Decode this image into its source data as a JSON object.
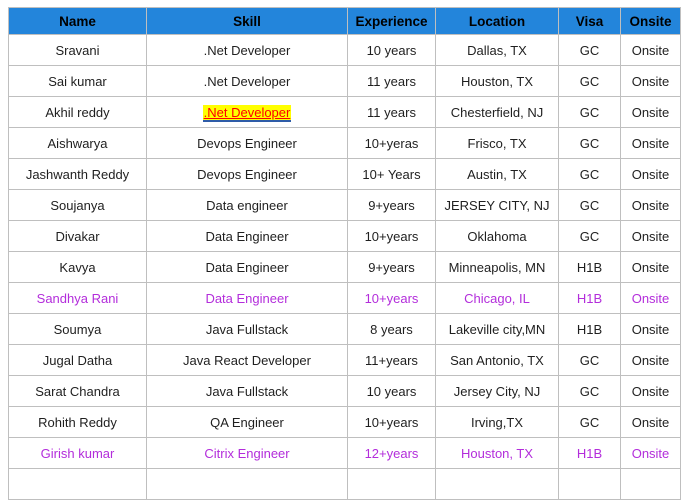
{
  "colors": {
    "header_bg": "#2385db",
    "header_text": "#000000",
    "accent_text": "#b32ddb",
    "highlight_bg": "#ffff00",
    "highlight_text": "#ff0000",
    "grid_border": "#bfbfbf"
  },
  "table": {
    "columns": [
      {
        "key": "name",
        "label": "Name"
      },
      {
        "key": "skill",
        "label": "Skill"
      },
      {
        "key": "experience",
        "label": "Experience"
      },
      {
        "key": "location",
        "label": "Location"
      },
      {
        "key": "visa",
        "label": "Visa"
      },
      {
        "key": "onsite",
        "label": "Onsite"
      }
    ],
    "rows": [
      {
        "name": "Sravani",
        "skill": ".Net Developer",
        "experience": "10 years",
        "location": "Dallas, TX",
        "visa": "GC",
        "onsite": "Onsite",
        "accent": false,
        "skill_highlight": false
      },
      {
        "name": "Sai kumar",
        "skill": ".Net Developer",
        "experience": "11 years",
        "location": "Houston, TX",
        "visa": "GC",
        "onsite": "Onsite",
        "accent": false,
        "skill_highlight": false
      },
      {
        "name": "Akhil reddy",
        "skill": ".Net Developer",
        "experience": "11 years",
        "location": "Chesterfield, NJ",
        "visa": "GC",
        "onsite": "Onsite",
        "accent": false,
        "skill_highlight": true
      },
      {
        "name": "Aishwarya",
        "skill": "Devops Engineer",
        "experience": "10+yeras",
        "location": "Frisco, TX",
        "visa": "GC",
        "onsite": "Onsite",
        "accent": false,
        "skill_highlight": false
      },
      {
        "name": "Jashwanth Reddy",
        "skill": "Devops Engineer",
        "experience": "10+ Years",
        "location": "Austin, TX",
        "visa": "GC",
        "onsite": "Onsite",
        "accent": false,
        "skill_highlight": false
      },
      {
        "name": "Soujanya",
        "skill": "Data engineer",
        "experience": "9+years",
        "location": "JERSEY CITY, NJ",
        "visa": "GC",
        "onsite": "Onsite",
        "accent": false,
        "skill_highlight": false
      },
      {
        "name": "Divakar",
        "skill": "Data Engineer",
        "experience": "10+years",
        "location": "Oklahoma",
        "visa": "GC",
        "onsite": "Onsite",
        "accent": false,
        "skill_highlight": false
      },
      {
        "name": "Kavya",
        "skill": "Data Engineer",
        "experience": "9+years",
        "location": "Minneapolis, MN",
        "visa": "H1B",
        "onsite": "Onsite",
        "accent": false,
        "skill_highlight": false
      },
      {
        "name": "Sandhya Rani",
        "skill": "Data Engineer",
        "experience": "10+years",
        "location": "Chicago, IL",
        "visa": "H1B",
        "onsite": "Onsite",
        "accent": true,
        "skill_highlight": false
      },
      {
        "name": "Soumya",
        "skill": "Java Fullstack",
        "experience": "8 years",
        "location": "Lakeville city,MN",
        "visa": "H1B",
        "onsite": "Onsite",
        "accent": false,
        "skill_highlight": false
      },
      {
        "name": "Jugal Datha",
        "skill": "Java React Developer",
        "experience": "11+years",
        "location": "San Antonio, TX",
        "visa": "GC",
        "onsite": "Onsite",
        "accent": false,
        "skill_highlight": false
      },
      {
        "name": "Sarat Chandra",
        "skill": "Java Fullstack",
        "experience": "10 years",
        "location": "Jersey City, NJ",
        "visa": "GC",
        "onsite": "Onsite",
        "accent": false,
        "skill_highlight": false
      },
      {
        "name": "Rohith Reddy",
        "skill": "QA Engineer",
        "experience": "10+years",
        "location": "Irving,TX",
        "visa": "GC",
        "onsite": "Onsite",
        "accent": false,
        "skill_highlight": false
      },
      {
        "name": "Girish kumar",
        "skill": "Citrix Engineer",
        "experience": "12+years",
        "location": "Houston, TX",
        "visa": "H1B",
        "onsite": "Onsite",
        "accent": true,
        "skill_highlight": false
      }
    ],
    "trailing_empty_row": true
  }
}
